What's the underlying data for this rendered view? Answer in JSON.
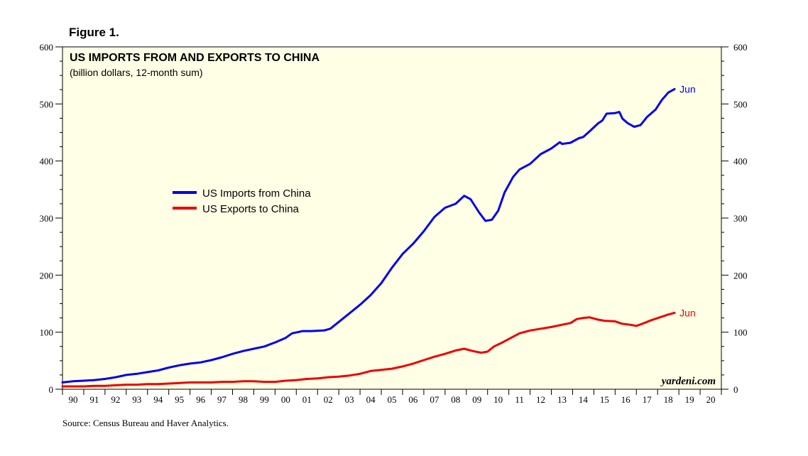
{
  "figure_label": "Figure 1.",
  "source": "Source: Census Bureau and Haver Analytics.",
  "watermark": "yardeni.com",
  "chart_data": {
    "type": "line",
    "title": "US IMPORTS FROM AND EXPORTS TO CHINA",
    "subtitle": "(billion dollars, 12-month sum)",
    "xlabel": "",
    "ylabel": "",
    "xlim": [
      1989.5,
      2020.5
    ],
    "ylim": [
      0,
      600
    ],
    "y_ticks": [
      0,
      100,
      200,
      300,
      400,
      500,
      600
    ],
    "y_ticks_right": [
      0,
      100,
      200,
      300,
      400,
      500,
      600
    ],
    "x_ticks": [
      {
        "label": "90",
        "x": 1990
      },
      {
        "label": "91",
        "x": 1991
      },
      {
        "label": "92",
        "x": 1992
      },
      {
        "label": "93",
        "x": 1993
      },
      {
        "label": "94",
        "x": 1994
      },
      {
        "label": "95",
        "x": 1995
      },
      {
        "label": "96",
        "x": 1996
      },
      {
        "label": "97",
        "x": 1997
      },
      {
        "label": "98",
        "x": 1998
      },
      {
        "label": "99",
        "x": 1999
      },
      {
        "label": "00",
        "x": 2000
      },
      {
        "label": "01",
        "x": 2001
      },
      {
        "label": "02",
        "x": 2002
      },
      {
        "label": "03",
        "x": 2003
      },
      {
        "label": "04",
        "x": 2004
      },
      {
        "label": "05",
        "x": 2005
      },
      {
        "label": "06",
        "x": 2006
      },
      {
        "label": "07",
        "x": 2007
      },
      {
        "label": "08",
        "x": 2008
      },
      {
        "label": "09",
        "x": 2009
      },
      {
        "label": "10",
        "x": 2010
      },
      {
        "label": "11",
        "x": 2011
      },
      {
        "label": "12",
        "x": 2012
      },
      {
        "label": "13",
        "x": 2013
      },
      {
        "label": "14",
        "x": 2014
      },
      {
        "label": "15",
        "x": 2015
      },
      {
        "label": "16",
        "x": 2016
      },
      {
        "label": "17",
        "x": 2017
      },
      {
        "label": "18",
        "x": 2018
      },
      {
        "label": "19",
        "x": 2019
      },
      {
        "label": "20",
        "x": 2020
      }
    ],
    "legend_position": "center-left",
    "series": [
      {
        "name": "US Imports from China",
        "color": "#0000ee",
        "end_label": "Jun",
        "points": [
          [
            1989.5,
            12
          ],
          [
            1990,
            14
          ],
          [
            1990.5,
            15
          ],
          [
            1991,
            16
          ],
          [
            1991.5,
            18
          ],
          [
            1992,
            21
          ],
          [
            1992.5,
            25
          ],
          [
            1993,
            27
          ],
          [
            1993.5,
            30
          ],
          [
            1994,
            33
          ],
          [
            1994.5,
            38
          ],
          [
            1995,
            42
          ],
          [
            1995.5,
            45
          ],
          [
            1996,
            47
          ],
          [
            1996.5,
            51
          ],
          [
            1997,
            56
          ],
          [
            1997.5,
            62
          ],
          [
            1998,
            67
          ],
          [
            1998.5,
            71
          ],
          [
            1999,
            75
          ],
          [
            1999.5,
            82
          ],
          [
            2000,
            90
          ],
          [
            2000.3,
            98
          ],
          [
            2000.8,
            102
          ],
          [
            2001.2,
            102
          ],
          [
            2001.8,
            103
          ],
          [
            2002.1,
            106
          ],
          [
            2002.5,
            118
          ],
          [
            2003,
            133
          ],
          [
            2003.5,
            148
          ],
          [
            2004,
            165
          ],
          [
            2004.5,
            186
          ],
          [
            2005,
            213
          ],
          [
            2005.5,
            237
          ],
          [
            2006,
            255
          ],
          [
            2006.5,
            277
          ],
          [
            2007,
            302
          ],
          [
            2007.5,
            318
          ],
          [
            2008,
            325
          ],
          [
            2008.4,
            339
          ],
          [
            2008.7,
            333
          ],
          [
            2009.1,
            310
          ],
          [
            2009.4,
            295
          ],
          [
            2009.7,
            297
          ],
          [
            2010,
            313
          ],
          [
            2010.3,
            345
          ],
          [
            2010.7,
            372
          ],
          [
            2011,
            385
          ],
          [
            2011.5,
            395
          ],
          [
            2012,
            412
          ],
          [
            2012.5,
            422
          ],
          [
            2012.9,
            433
          ],
          [
            2013,
            430
          ],
          [
            2013.4,
            432
          ],
          [
            2013.8,
            440
          ],
          [
            2014,
            442
          ],
          [
            2014.3,
            452
          ],
          [
            2014.7,
            466
          ],
          [
            2014.9,
            471
          ],
          [
            2015.1,
            483
          ],
          [
            2015.5,
            484
          ],
          [
            2015.7,
            486
          ],
          [
            2015.85,
            474
          ],
          [
            2016.1,
            466
          ],
          [
            2016.4,
            460
          ],
          [
            2016.7,
            463
          ],
          [
            2017,
            477
          ],
          [
            2017.4,
            490
          ],
          [
            2017.7,
            507
          ],
          [
            2018,
            520
          ],
          [
            2018.3,
            526
          ]
        ]
      },
      {
        "name": "US Exports to China",
        "color": "#ee0000",
        "end_label": "Jun",
        "points": [
          [
            1989.5,
            5
          ],
          [
            1990,
            5
          ],
          [
            1990.5,
            5
          ],
          [
            1991,
            6
          ],
          [
            1991.5,
            6
          ],
          [
            1992,
            7
          ],
          [
            1992.5,
            8
          ],
          [
            1993,
            8
          ],
          [
            1993.5,
            9
          ],
          [
            1994,
            9
          ],
          [
            1994.5,
            10
          ],
          [
            1995,
            11
          ],
          [
            1995.5,
            12
          ],
          [
            1996,
            12
          ],
          [
            1996.5,
            12
          ],
          [
            1997,
            13
          ],
          [
            1997.5,
            13
          ],
          [
            1998,
            14
          ],
          [
            1998.5,
            14
          ],
          [
            1999,
            13
          ],
          [
            1999.5,
            13
          ],
          [
            2000,
            15
          ],
          [
            2000.5,
            16
          ],
          [
            2001,
            18
          ],
          [
            2001.5,
            19
          ],
          [
            2002,
            21
          ],
          [
            2002.5,
            22
          ],
          [
            2003,
            24
          ],
          [
            2003.5,
            27
          ],
          [
            2004,
            32
          ],
          [
            2004.5,
            34
          ],
          [
            2005,
            36
          ],
          [
            2005.5,
            40
          ],
          [
            2006,
            45
          ],
          [
            2006.5,
            51
          ],
          [
            2007,
            57
          ],
          [
            2007.5,
            62
          ],
          [
            2008,
            68
          ],
          [
            2008.4,
            71
          ],
          [
            2008.8,
            67
          ],
          [
            2009.2,
            64
          ],
          [
            2009.5,
            66
          ],
          [
            2009.8,
            75
          ],
          [
            2010.2,
            82
          ],
          [
            2010.6,
            90
          ],
          [
            2011,
            98
          ],
          [
            2011.5,
            103
          ],
          [
            2012,
            106
          ],
          [
            2012.5,
            109
          ],
          [
            2013,
            113
          ],
          [
            2013.4,
            116
          ],
          [
            2013.7,
            123
          ],
          [
            2014,
            125
          ],
          [
            2014.3,
            126
          ],
          [
            2014.7,
            122
          ],
          [
            2015,
            120
          ],
          [
            2015.5,
            119
          ],
          [
            2015.8,
            115
          ],
          [
            2016.2,
            113
          ],
          [
            2016.5,
            111
          ],
          [
            2016.8,
            115
          ],
          [
            2017.2,
            121
          ],
          [
            2017.6,
            126
          ],
          [
            2018,
            131
          ],
          [
            2018.3,
            134
          ]
        ]
      }
    ]
  }
}
